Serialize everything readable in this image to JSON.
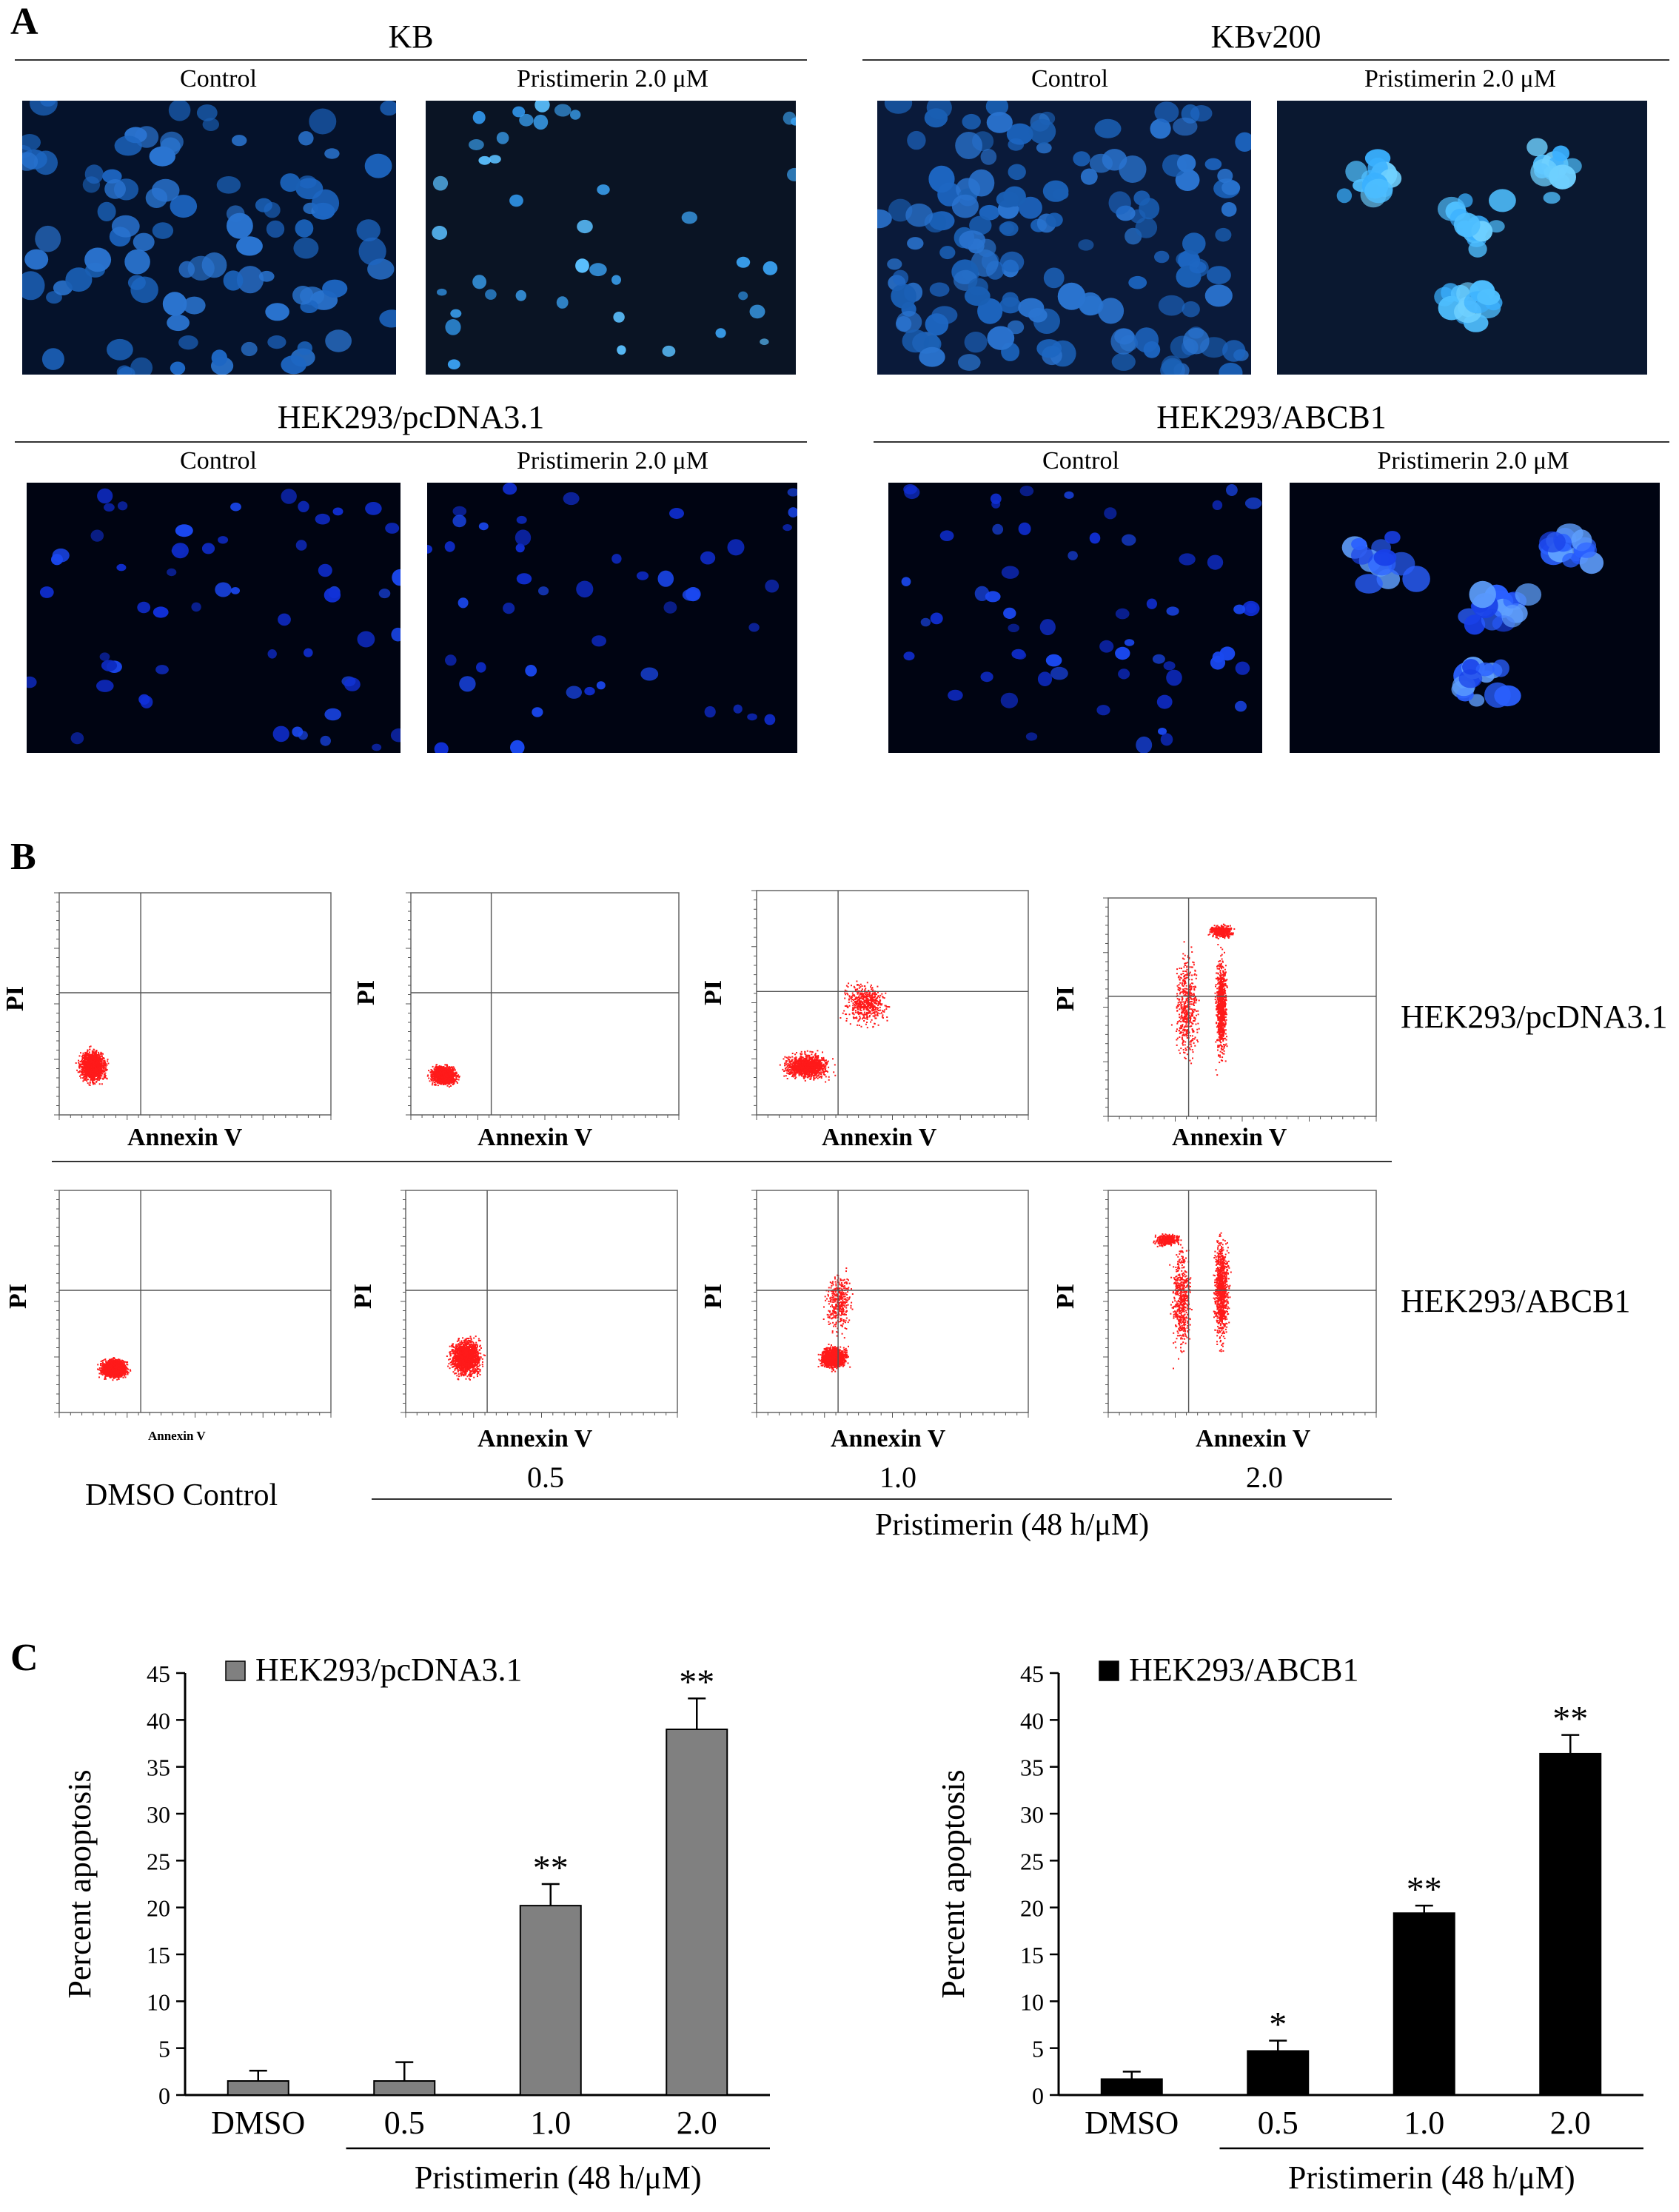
{
  "panel_a": {
    "letter": "A",
    "groups": [
      {
        "title": "KB",
        "control": "Control",
        "treated": "Pristimerin  2.0 μM"
      },
      {
        "title": "KBv200",
        "control": "Control",
        "treated": "Pristimerin  2.0 μM"
      },
      {
        "title": "HEK293/pcDNA3.1",
        "control": "Control",
        "treated": "Pristimerin  2.0 μM"
      },
      {
        "title": "HEK293/ABCB1",
        "control": "Control",
        "treated": "Pristimerin  2.0 μM"
      }
    ]
  },
  "panel_b": {
    "letter": "B",
    "x_axis_label": "Annexin V",
    "y_axis_label": "PI",
    "rows": [
      "HEK293/pcDNA3.1",
      "HEK293/ABCB1"
    ],
    "control_label": "DMSO Control",
    "doses": [
      "0.5",
      "1.0",
      "2.0"
    ],
    "treatment_label": "Pristimerin (48 h/μM)",
    "flow_colors": {
      "events": "#ff1a1a"
    }
  },
  "panel_c": {
    "letter": "C",
    "chart_data": [
      {
        "type": "bar",
        "legend": "HEK293/pcDNA3.1",
        "color": "#808080",
        "categories": [
          "DMSO",
          "0.5",
          "1.0",
          "2.0"
        ],
        "values": [
          1.5,
          1.5,
          20.2,
          39.0
        ],
        "errors": [
          1.1,
          2.0,
          2.3,
          3.3
        ],
        "significance": [
          "",
          "",
          "**",
          "**"
        ],
        "ylabel": "Percent apoptosis",
        "xlabel": "Pristimerin (48 h/μM)",
        "ylim": [
          0,
          45
        ],
        "yticks": [
          "0",
          "5",
          "10",
          "15",
          "20",
          "25",
          "30",
          "35",
          "40",
          "45"
        ]
      },
      {
        "type": "bar",
        "legend": "HEK293/ABCB1",
        "color": "#000000",
        "categories": [
          "DMSO",
          "0.5",
          "1.0",
          "2.0"
        ],
        "values": [
          1.7,
          4.7,
          19.4,
          36.4
        ],
        "errors": [
          0.8,
          1.1,
          0.8,
          2.0
        ],
        "significance": [
          "",
          "*",
          "**",
          "**"
        ],
        "ylabel": "Percent apoptosis",
        "xlabel": "Pristimerin (48 h/μM)",
        "ylim": [
          0,
          45
        ],
        "yticks": [
          "0",
          "5",
          "10",
          "15",
          "20",
          "25",
          "30",
          "35",
          "40",
          "45"
        ]
      }
    ]
  }
}
